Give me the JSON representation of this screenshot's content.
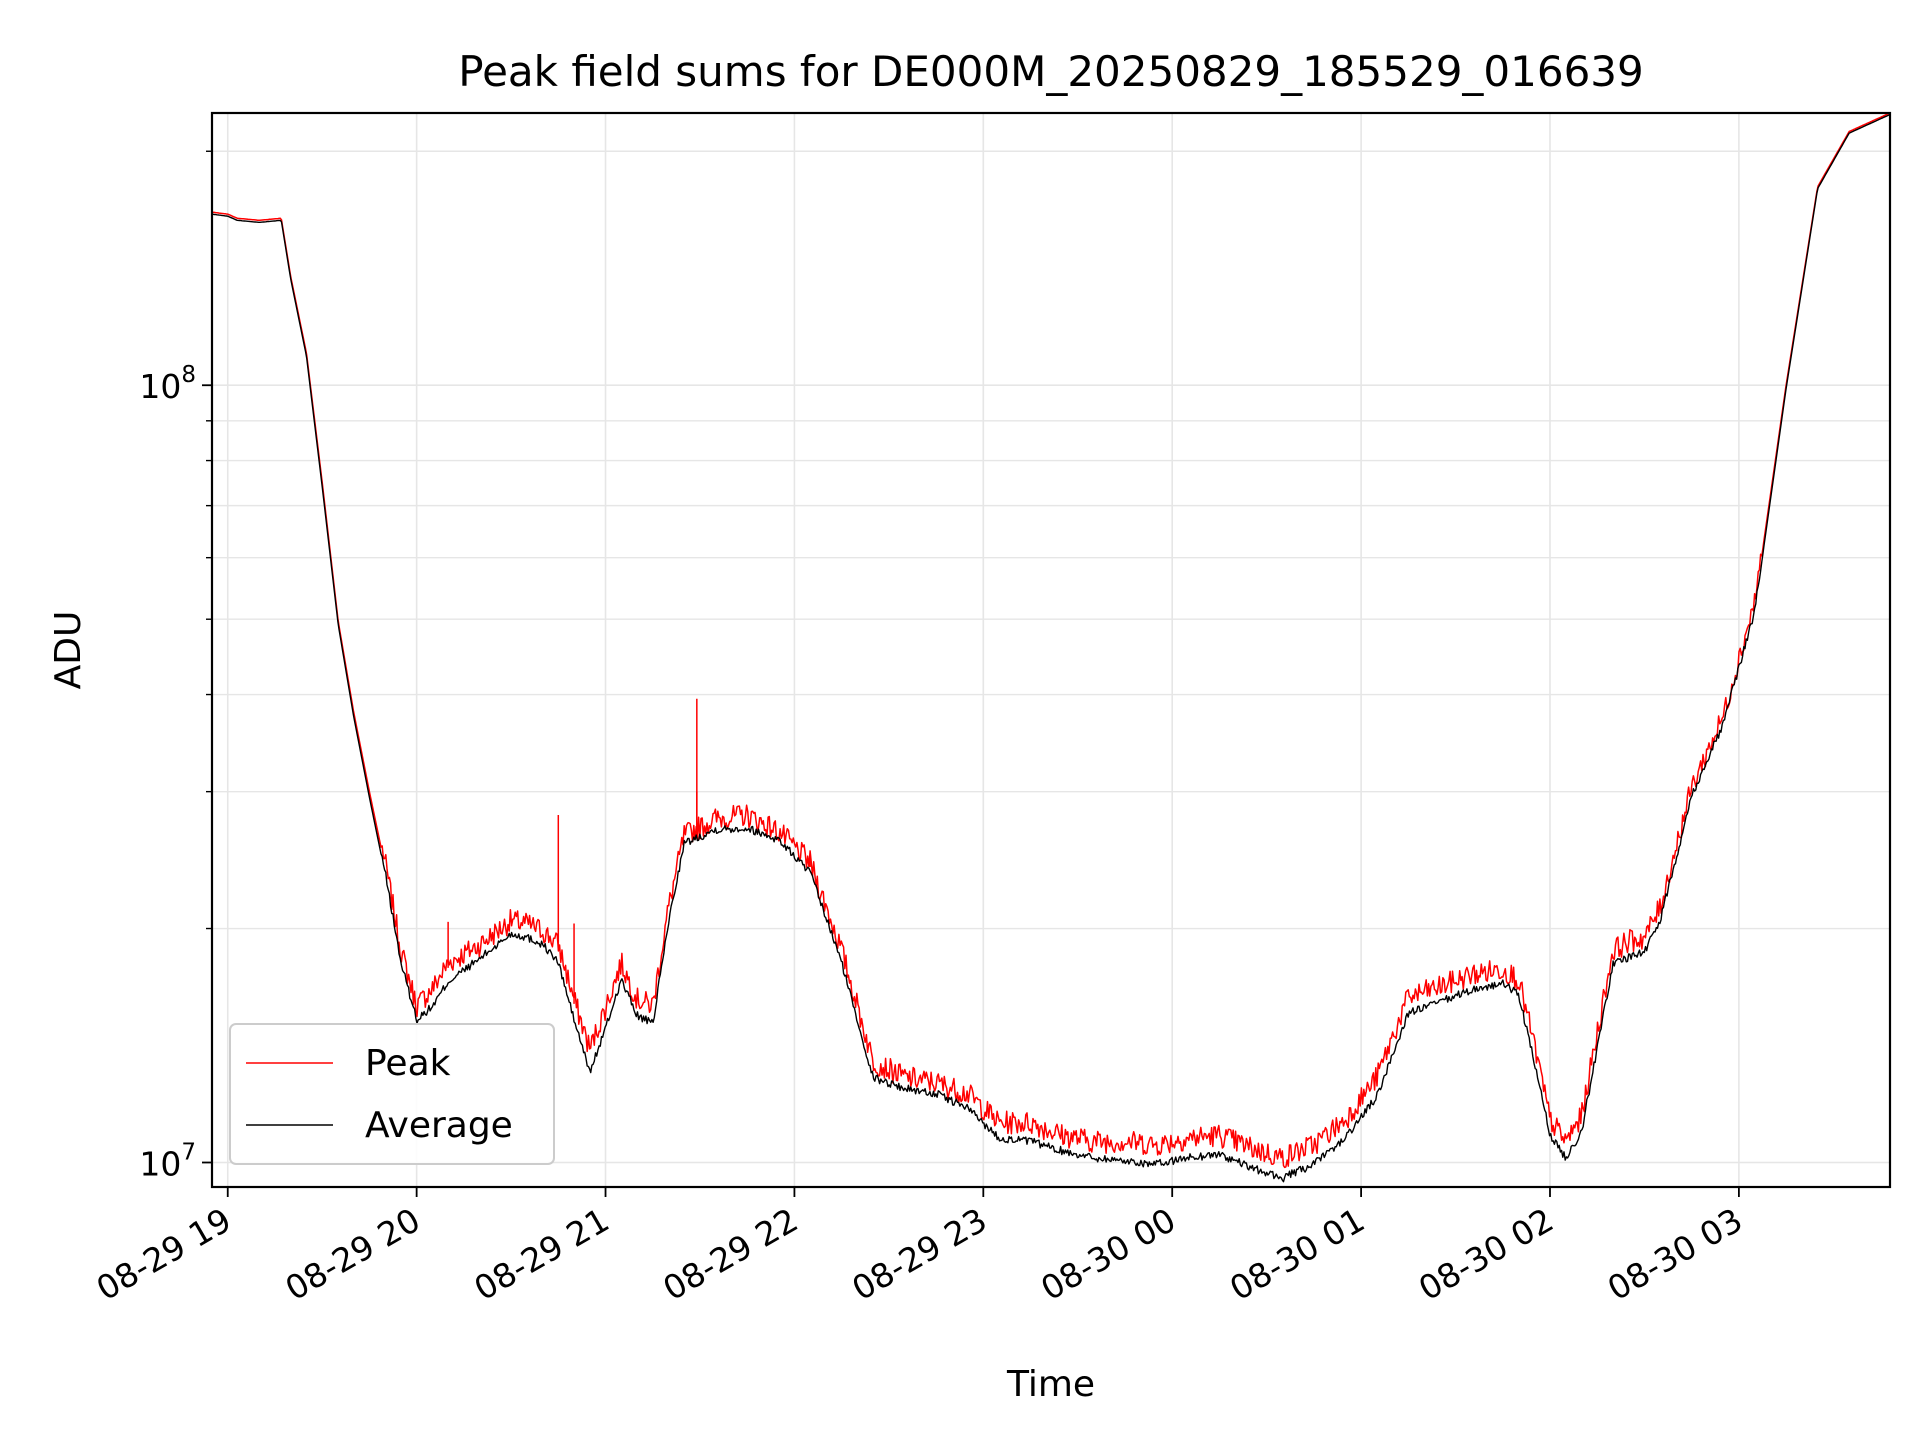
{
  "chart_data": {
    "type": "line",
    "title": "Peak field sums for DE000M_20250829_185529_016639",
    "xlabel": "Time",
    "ylabel": "ADU",
    "yscale": "log",
    "ylim": [
      9300000,
      224000000
    ],
    "xlim": [
      "2025-08-29 18:55",
      "2025-08-30 03:48"
    ],
    "grid": true,
    "legend_position": "lower-left",
    "x_ticks": [
      "08-29 19",
      "08-29 20",
      "08-29 21",
      "08-29 22",
      "08-29 23",
      "08-30 00",
      "08-30 01",
      "08-30 02",
      "08-30 03"
    ],
    "y_ticks": [
      {
        "value": 10000000,
        "base": "10",
        "exp": "7"
      },
      {
        "value": 100000000,
        "base": "10",
        "exp": "8"
      }
    ],
    "colors": {
      "peak": "#ff0000",
      "average": "#000000",
      "grid": "#e6e6e6"
    },
    "series": [
      {
        "name": "Peak",
        "color": "#ff0000",
        "points": [
          [
            "2025-08-29 18:55",
            167000000
          ],
          [
            "2025-08-29 19:00",
            166000000
          ],
          [
            "2025-08-29 19:03",
            164000000
          ],
          [
            "2025-08-29 19:10",
            163000000
          ],
          [
            "2025-08-29 19:17",
            164000000
          ],
          [
            "2025-08-29 19:20",
            138000000
          ],
          [
            "2025-08-29 19:25",
            110000000
          ],
          [
            "2025-08-29 19:30",
            75000000
          ],
          [
            "2025-08-29 19:35",
            50000000
          ],
          [
            "2025-08-29 19:40",
            38000000
          ],
          [
            "2025-08-29 19:45",
            30000000
          ],
          [
            "2025-08-29 19:50",
            24000000
          ],
          [
            "2025-08-29 19:55",
            18500000
          ],
          [
            "2025-08-29 20:00",
            15700000
          ],
          [
            "2025-08-29 20:05",
            16500000
          ],
          [
            "2025-08-29 20:10",
            17800000
          ],
          [
            "2025-08-29 20:20",
            18800000
          ],
          [
            "2025-08-29 20:30",
            20200000
          ],
          [
            "2025-08-29 20:35",
            20000000
          ],
          [
            "2025-08-29 20:40",
            19600000
          ],
          [
            "2025-08-29 20:45",
            18800000
          ],
          [
            "2025-08-29 20:50",
            16000000
          ],
          [
            "2025-08-29 20:55",
            13800000
          ],
          [
            "2025-08-29 21:00",
            15600000
          ],
          [
            "2025-08-29 21:05",
            17800000
          ],
          [
            "2025-08-29 21:10",
            16000000
          ],
          [
            "2025-08-29 21:15",
            15700000
          ],
          [
            "2025-08-29 21:20",
            21000000
          ],
          [
            "2025-08-29 21:25",
            26000000
          ],
          [
            "2025-08-29 21:35",
            27300000
          ],
          [
            "2025-08-29 21:45",
            27600000
          ],
          [
            "2025-08-29 21:55",
            26300000
          ],
          [
            "2025-08-29 22:05",
            24000000
          ],
          [
            "2025-08-29 22:15",
            18500000
          ],
          [
            "2025-08-29 22:25",
            13300000
          ],
          [
            "2025-08-29 22:35",
            12700000
          ],
          [
            "2025-08-29 22:45",
            12500000
          ],
          [
            "2025-08-29 22:55",
            12100000
          ],
          [
            "2025-08-29 23:05",
            11100000
          ],
          [
            "2025-08-29 23:15",
            11100000
          ],
          [
            "2025-08-29 23:25",
            10700000
          ],
          [
            "2025-08-29 23:35",
            10500000
          ],
          [
            "2025-08-29 23:45",
            10500000
          ],
          [
            "2025-08-29 23:55",
            10400000
          ],
          [
            "2025-08-30 00:05",
            10600000
          ],
          [
            "2025-08-30 00:15",
            10700000
          ],
          [
            "2025-08-30 00:25",
            10300000
          ],
          [
            "2025-08-30 00:35",
            10000000
          ],
          [
            "2025-08-30 00:45",
            10400000
          ],
          [
            "2025-08-30 00:55",
            11200000
          ],
          [
            "2025-08-30 01:05",
            12700000
          ],
          [
            "2025-08-30 01:15",
            16100000
          ],
          [
            "2025-08-30 01:25",
            16600000
          ],
          [
            "2025-08-30 01:35",
            17200000
          ],
          [
            "2025-08-30 01:45",
            17500000
          ],
          [
            "2025-08-30 01:50",
            17000000
          ],
          [
            "2025-08-30 01:55",
            14000000
          ],
          [
            "2025-08-30 02:00",
            11200000
          ],
          [
            "2025-08-30 02:05",
            10500000
          ],
          [
            "2025-08-30 02:10",
            11300000
          ],
          [
            "2025-08-30 02:15",
            14500000
          ],
          [
            "2025-08-30 02:20",
            18500000
          ],
          [
            "2025-08-30 02:25",
            19000000
          ],
          [
            "2025-08-30 02:30",
            19200000
          ],
          [
            "2025-08-30 02:35",
            21000000
          ],
          [
            "2025-08-30 02:45",
            30000000
          ],
          [
            "2025-08-30 02:55",
            37000000
          ],
          [
            "2025-08-30 03:05",
            52000000
          ],
          [
            "2025-08-30 03:15",
            100000000
          ],
          [
            "2025-08-30 03:25",
            180000000
          ],
          [
            "2025-08-30 03:35",
            212000000
          ],
          [
            "2025-08-30 03:48",
            224000000
          ]
        ],
        "spikes": [
          [
            "2025-08-29 20:10",
            20400000
          ],
          [
            "2025-08-29 20:45",
            28000000
          ],
          [
            "2025-08-29 20:50",
            20300000
          ],
          [
            "2025-08-29 21:29",
            39500000
          ],
          [
            "2025-08-29 21:29",
            30000000
          ],
          [
            "2025-08-29 22:05",
            25000000
          ]
        ]
      },
      {
        "name": "Average",
        "color": "#000000",
        "points": [
          [
            "2025-08-29 18:55",
            166000000
          ],
          [
            "2025-08-29 19:00",
            165000000
          ],
          [
            "2025-08-29 19:03",
            163000000
          ],
          [
            "2025-08-29 19:10",
            162000000
          ],
          [
            "2025-08-29 19:17",
            163000000
          ],
          [
            "2025-08-29 19:20",
            137000000
          ],
          [
            "2025-08-29 19:25",
            109000000
          ],
          [
            "2025-08-29 19:30",
            74000000
          ],
          [
            "2025-08-29 19:35",
            49500000
          ],
          [
            "2025-08-29 19:40",
            37500000
          ],
          [
            "2025-08-29 19:45",
            29500000
          ],
          [
            "2025-08-29 19:50",
            23500000
          ],
          [
            "2025-08-29 19:55",
            18000000
          ],
          [
            "2025-08-29 20:00",
            15200000
          ],
          [
            "2025-08-29 20:05",
            15800000
          ],
          [
            "2025-08-29 20:10",
            17000000
          ],
          [
            "2025-08-29 20:20",
            18200000
          ],
          [
            "2025-08-29 20:30",
            19600000
          ],
          [
            "2025-08-29 20:35",
            19400000
          ],
          [
            "2025-08-29 20:40",
            19000000
          ],
          [
            "2025-08-29 20:45",
            18000000
          ],
          [
            "2025-08-29 20:50",
            15200000
          ],
          [
            "2025-08-29 20:55",
            13000000
          ],
          [
            "2025-08-29 21:00",
            14800000
          ],
          [
            "2025-08-29 21:05",
            17100000
          ],
          [
            "2025-08-29 21:10",
            15400000
          ],
          [
            "2025-08-29 21:15",
            15000000
          ],
          [
            "2025-08-29 21:20",
            20300000
          ],
          [
            "2025-08-29 21:25",
            25600000
          ],
          [
            "2025-08-29 21:35",
            26700000
          ],
          [
            "2025-08-29 21:45",
            26800000
          ],
          [
            "2025-08-29 21:55",
            25900000
          ],
          [
            "2025-08-29 22:05",
            23500000
          ],
          [
            "2025-08-29 22:15",
            18000000
          ],
          [
            "2025-08-29 22:25",
            12800000
          ],
          [
            "2025-08-29 22:35",
            12400000
          ],
          [
            "2025-08-29 22:45",
            12200000
          ],
          [
            "2025-08-29 22:55",
            11700000
          ],
          [
            "2025-08-29 23:05",
            10700000
          ],
          [
            "2025-08-29 23:15",
            10600000
          ],
          [
            "2025-08-29 23:25",
            10300000
          ],
          [
            "2025-08-29 23:35",
            10100000
          ],
          [
            "2025-08-29 23:45",
            10000000
          ],
          [
            "2025-08-29 23:55",
            9900000
          ],
          [
            "2025-08-30 00:05",
            10100000
          ],
          [
            "2025-08-30 00:15",
            10200000
          ],
          [
            "2025-08-30 00:25",
            9800000
          ],
          [
            "2025-08-30 00:35",
            9500000
          ],
          [
            "2025-08-30 00:45",
            9900000
          ],
          [
            "2025-08-30 00:55",
            10700000
          ],
          [
            "2025-08-30 01:05",
            12100000
          ],
          [
            "2025-08-30 01:15",
            15500000
          ],
          [
            "2025-08-30 01:25",
            16000000
          ],
          [
            "2025-08-30 01:35",
            16600000
          ],
          [
            "2025-08-30 01:45",
            16900000
          ],
          [
            "2025-08-30 01:50",
            16400000
          ],
          [
            "2025-08-30 01:55",
            13400000
          ],
          [
            "2025-08-30 02:00",
            10800000
          ],
          [
            "2025-08-30 02:05",
            10100000
          ],
          [
            "2025-08-30 02:10",
            10900000
          ],
          [
            "2025-08-30 02:15",
            14000000
          ],
          [
            "2025-08-30 02:20",
            17900000
          ],
          [
            "2025-08-30 02:25",
            18300000
          ],
          [
            "2025-08-30 02:30",
            18600000
          ],
          [
            "2025-08-30 02:35",
            20400000
          ],
          [
            "2025-08-30 02:45",
            29500000
          ],
          [
            "2025-08-30 02:55",
            36500000
          ],
          [
            "2025-08-30 03:05",
            51000000
          ],
          [
            "2025-08-30 03:15",
            99000000
          ],
          [
            "2025-08-30 03:25",
            179000000
          ],
          [
            "2025-08-30 03:35",
            211000000
          ],
          [
            "2025-08-30 03:48",
            223000000
          ]
        ]
      }
    ]
  }
}
